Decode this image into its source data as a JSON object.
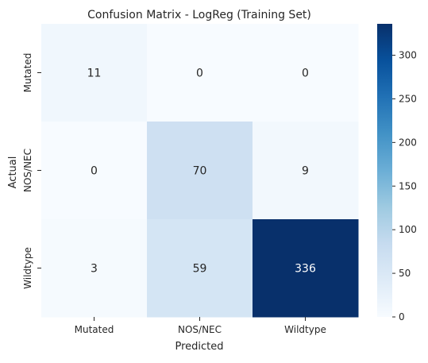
{
  "chart_data": {
    "type": "heatmap",
    "title": "Confusion Matrix - LogReg (Training Set)",
    "xlabel": "Predicted",
    "ylabel": "Actual",
    "x_categories": [
      "Mutated",
      "NOS/NEC",
      "Wildtype"
    ],
    "y_categories": [
      "Mutated",
      "NOS/NEC",
      "Wildtype"
    ],
    "values": [
      [
        11,
        0,
        0
      ],
      [
        0,
        70,
        9
      ],
      [
        3,
        59,
        336
      ]
    ],
    "colormap": "Blues",
    "vmin": 0,
    "vmax": 336,
    "colorbar_ticks": [
      0,
      50,
      100,
      150,
      200,
      250,
      300
    ],
    "annotation_dark_color": "#262626",
    "annotation_light_color": "#ffffff"
  }
}
